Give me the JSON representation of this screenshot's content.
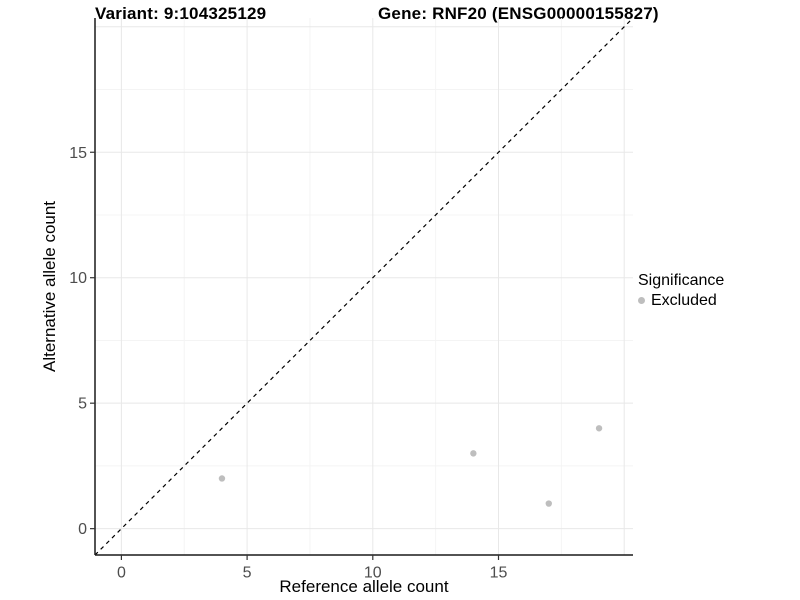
{
  "chart_data": {
    "type": "scatter",
    "titles": {
      "left": "Variant: 9:104325129",
      "right": "Gene: RNF20 (ENSG00000155827)"
    },
    "xlabel": "Reference allele count",
    "ylabel": "Alternative allele count",
    "xlim": [
      -1.05,
      20.35
    ],
    "ylim": [
      -1.05,
      20.35
    ],
    "x_ticks": [
      0,
      5,
      10,
      15
    ],
    "y_ticks": [
      0,
      5,
      10,
      15
    ],
    "grid": {
      "major": [
        0,
        5,
        10,
        15,
        20
      ],
      "minor": [
        2.5,
        7.5,
        12.5,
        17.5
      ],
      "color_major": "#e8e8e8",
      "color_minor": "#f4f4f4"
    },
    "series": [
      {
        "name": "Excluded",
        "color": "#bebebe",
        "point_radius": 3.2,
        "points": [
          [
            4,
            2
          ],
          [
            14,
            3
          ],
          [
            17,
            1
          ],
          [
            19,
            4
          ]
        ]
      }
    ],
    "reference_line": {
      "type": "identity",
      "style": "dashed",
      "color": "#000000",
      "from": [
        -1.05,
        -1.05
      ],
      "to": [
        20.35,
        20.35
      ]
    },
    "legend": {
      "title": "Significance",
      "position": "right",
      "items": [
        {
          "label": "Excluded",
          "color": "#bebebe"
        }
      ]
    },
    "style": {
      "axis_line_color": "#1a1a1a",
      "tick_color": "#333333",
      "tick_label_color": "#4d4d4d",
      "axis_title_color": "#000000",
      "background": "#ffffff"
    }
  }
}
